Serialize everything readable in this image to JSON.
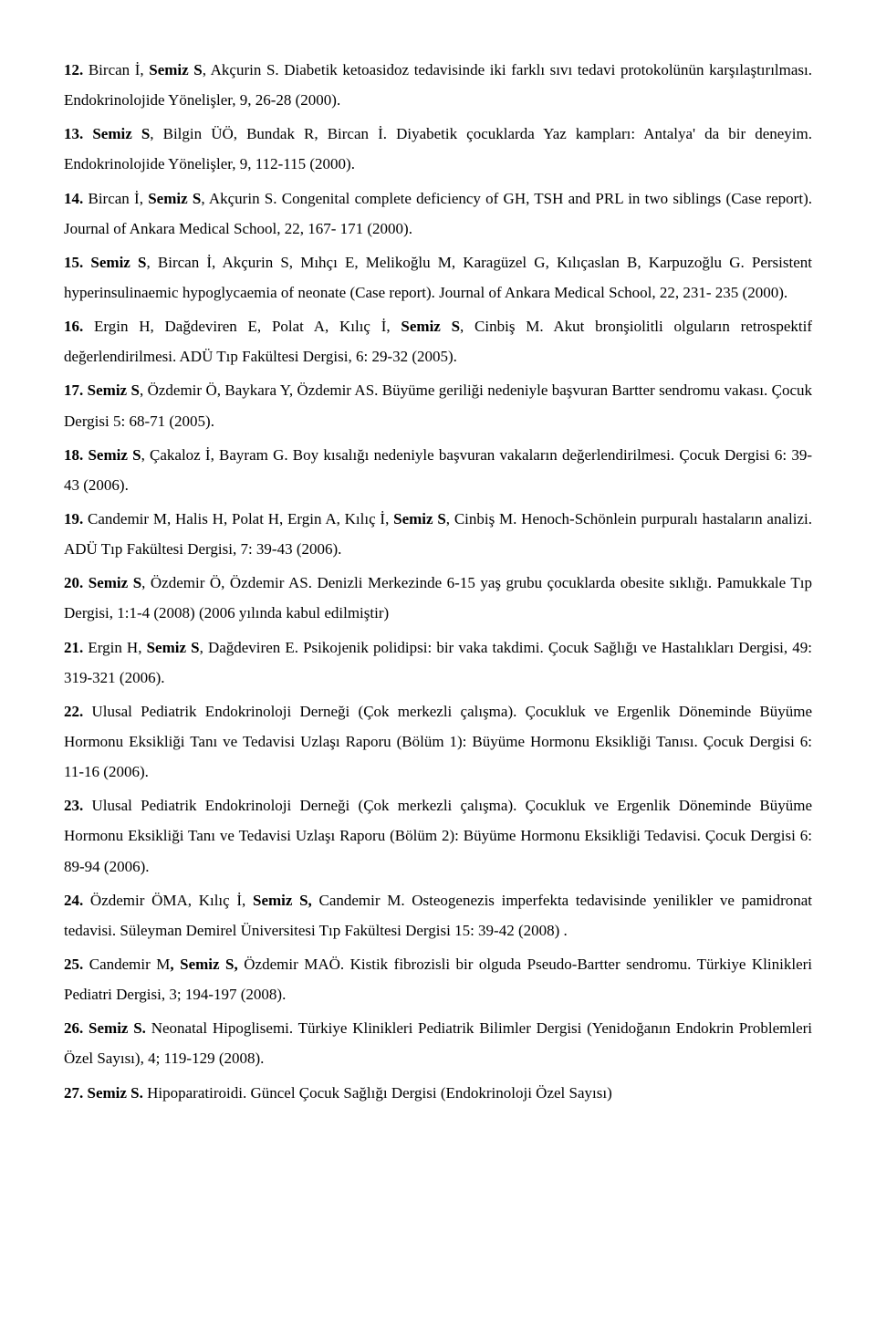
{
  "entries": [
    [
      {
        "t": "12.",
        "b": true
      },
      {
        "t": " Bircan İ, "
      },
      {
        "t": "Semiz S",
        "b": true
      },
      {
        "t": ", Akçurin S. Diabetik ketoasidoz tedavisinde iki farklı sıvı tedavi protokolünün karşılaştırılması. Endokrinolojide Yönelişler, 9, 26-28 (2000)."
      }
    ],
    [
      {
        "t": "13.",
        "b": true
      },
      {
        "t": " "
      },
      {
        "t": "Semiz S",
        "b": true
      },
      {
        "t": ", Bilgin ÜÖ, Bundak R, Bircan İ. Diyabetik çocuklarda Yaz kampları: Antalya' da bir deneyim. Endokrinolojide Yönelişler, 9, 112-115 (2000)."
      }
    ],
    [
      {
        "t": "14.",
        "b": true
      },
      {
        "t": " Bircan İ, "
      },
      {
        "t": "Semiz S",
        "b": true
      },
      {
        "t": ", Akçurin S. Congenital complete deficiency of GH, TSH and PRL in two siblings (Case report). Journal of Ankara Medical School, 22, 167- 171 (2000)."
      }
    ],
    [
      {
        "t": "15.",
        "b": true
      },
      {
        "t": " "
      },
      {
        "t": "Semiz S",
        "b": true
      },
      {
        "t": ", Bircan İ, Akçurin S, Mıhçı E, Melikoğlu M, Karagüzel G, Kılıçaslan B, Karpuzoğlu G. Persistent hyperinsulinaemic hypoglycaemia of neonate (Case report). Journal of Ankara Medical School, 22, 231- 235 (2000)."
      }
    ],
    [
      {
        "t": "16.",
        "b": true
      },
      {
        "t": " Ergin H, Dağdeviren E, Polat A, Kılıç İ, "
      },
      {
        "t": "Semiz S",
        "b": true
      },
      {
        "t": ", Cinbiş M. Akut bronşiolitli olguların retrospektif değerlendirilmesi. ADÜ Tıp Fakültesi Dergisi, 6: 29-32 (2005)."
      }
    ],
    [
      {
        "t": "17.",
        "b": true
      },
      {
        "t": " "
      },
      {
        "t": "Semiz S",
        "b": true
      },
      {
        "t": ", Özdemir Ö, Baykara Y, Özdemir AS. Büyüme geriliği nedeniyle başvuran Bartter sendromu vakası. Çocuk Dergisi 5: 68-71 (2005)."
      }
    ],
    [
      {
        "t": "18.",
        "b": true
      },
      {
        "t": " "
      },
      {
        "t": "Semiz S",
        "b": true
      },
      {
        "t": ", Çakaloz İ, Bayram G. Boy kısalığı nedeniyle başvuran vakaların değerlendirilmesi. Çocuk Dergisi 6: 39-43 (2006)."
      }
    ],
    [
      {
        "t": "19.",
        "b": true
      },
      {
        "t": " Candemir M, Halis H, Polat H, Ergin A, Kılıç İ, "
      },
      {
        "t": "Semiz S",
        "b": true
      },
      {
        "t": ", Cinbiş M. Henoch-Schönlein purpuralı hastaların analizi. ADÜ Tıp Fakültesi Dergisi, 7: 39-43 (2006)."
      }
    ],
    [
      {
        "t": "20.",
        "b": true
      },
      {
        "t": " "
      },
      {
        "t": "Semiz S",
        "b": true
      },
      {
        "t": ", Özdemir Ö,  Özdemir AS. Denizli Merkezinde 6-15 yaş grubu çocuklarda obesite sıklığı. Pamukkale Tıp Dergisi, 1:1-4 (2008) (2006 yılında kabul edilmiştir)"
      }
    ],
    [
      {
        "t": "21.",
        "b": true
      },
      {
        "t": " Ergin H, "
      },
      {
        "t": "Semiz S",
        "b": true
      },
      {
        "t": ", Dağdeviren E. Psikojenik polidipsi: bir vaka takdimi. Çocuk Sağlığı ve Hastalıkları Dergisi, 49: 319-321 (2006)."
      }
    ],
    [
      {
        "t": "22.",
        "b": true
      },
      {
        "t": " Ulusal  Pediatrik Endokrinoloji Derneği (Çok merkezli çalışma). Çocukluk ve Ergenlik Döneminde Büyüme Hormonu Eksikliği Tanı ve Tedavisi Uzlaşı Raporu (Bölüm 1): Büyüme Hormonu Eksikliği Tanısı. Çocuk Dergisi 6: 11-16 (2006)."
      }
    ],
    [
      {
        "t": "23.",
        "b": true
      },
      {
        "t": " Ulusal  Pediatrik Endokrinoloji Derneği (Çok merkezli çalışma). Çocukluk ve Ergenlik Döneminde Büyüme Hormonu Eksikliği Tanı ve Tedavisi Uzlaşı Raporu (Bölüm 2): Büyüme Hormonu Eksikliği Tedavisi. Çocuk Dergisi 6: 89-94 (2006)."
      }
    ],
    [
      {
        "t": "24.",
        "b": true
      },
      {
        "t": " Özdemir ÖMA, Kılıç İ, "
      },
      {
        "t": "Semiz S,",
        "b": true
      },
      {
        "t": " Candemir M. Osteogenezis imperfekta tedavisinde yenilikler ve pamidronat tedavisi. Süleyman Demirel Üniversitesi Tıp Fakültesi Dergisi 15: 39-42 (2008) ."
      }
    ],
    [
      {
        "t": "25.",
        "b": true
      },
      {
        "t": " Candemir M"
      },
      {
        "t": ", Semiz S,",
        "b": true
      },
      {
        "t": " Özdemir MAÖ. Kistik fibrozisli bir olguda Pseudo-Bartter sendromu. Türkiye Klinikleri Pediatri Dergisi, 3; 194-197 (2008)."
      }
    ],
    [
      {
        "t": "26.",
        "b": true
      },
      {
        "t": " "
      },
      {
        "t": "Semiz S.",
        "b": true
      },
      {
        "t": " Neonatal Hipoglisemi. Türkiye Klinikleri Pediatrik Bilimler Dergisi (Yenidoğanın Endokrin Problemleri Özel Sayısı), 4; 119-129 (2008)."
      }
    ],
    [
      {
        "t": "27.",
        "b": true
      },
      {
        "t": " "
      },
      {
        "t": "Semiz S.",
        "b": true
      },
      {
        "t": " Hipoparatiroidi. Güncel Çocuk Sağlığı Dergisi (Endokrinoloji Özel Sayısı)"
      }
    ]
  ]
}
